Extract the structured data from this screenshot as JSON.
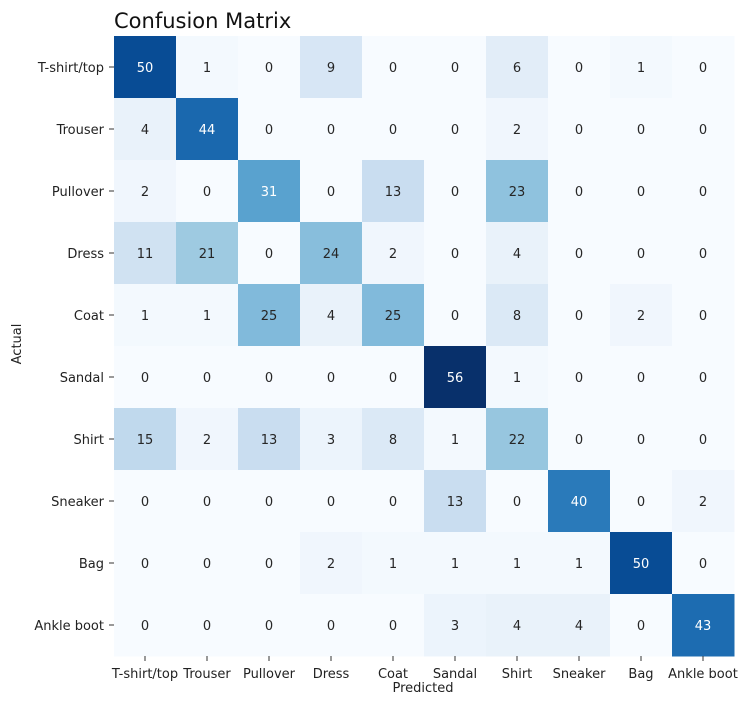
{
  "chart_data": {
    "type": "heatmap",
    "title": "Confusion Matrix",
    "xlabel": "Predicted",
    "ylabel": "Actual",
    "x_categories": [
      "T-shirt/top",
      "Trouser",
      "Pullover",
      "Dress",
      "Coat",
      "Sandal",
      "Shirt",
      "Sneaker",
      "Bag",
      "Ankle boot"
    ],
    "y_categories": [
      "T-shirt/top",
      "Trouser",
      "Pullover",
      "Dress",
      "Coat",
      "Sandal",
      "Shirt",
      "Sneaker",
      "Bag",
      "Ankle boot"
    ],
    "values": [
      [
        50,
        1,
        0,
        9,
        0,
        0,
        6,
        0,
        1,
        0
      ],
      [
        4,
        44,
        0,
        0,
        0,
        0,
        2,
        0,
        0,
        0
      ],
      [
        2,
        0,
        31,
        0,
        13,
        0,
        23,
        0,
        0,
        0
      ],
      [
        11,
        21,
        0,
        24,
        2,
        0,
        4,
        0,
        0,
        0
      ],
      [
        1,
        1,
        25,
        4,
        25,
        0,
        8,
        0,
        2,
        0
      ],
      [
        0,
        0,
        0,
        0,
        0,
        56,
        1,
        0,
        0,
        0
      ],
      [
        15,
        2,
        13,
        3,
        8,
        1,
        22,
        0,
        0,
        0
      ],
      [
        0,
        0,
        0,
        0,
        0,
        13,
        0,
        40,
        0,
        2
      ],
      [
        0,
        0,
        0,
        2,
        1,
        1,
        1,
        1,
        50,
        0
      ],
      [
        0,
        0,
        0,
        0,
        0,
        3,
        4,
        4,
        0,
        43
      ]
    ],
    "colormap": "Blues",
    "vmin": 0,
    "vmax": 56,
    "colorbar": false,
    "grid": false
  }
}
